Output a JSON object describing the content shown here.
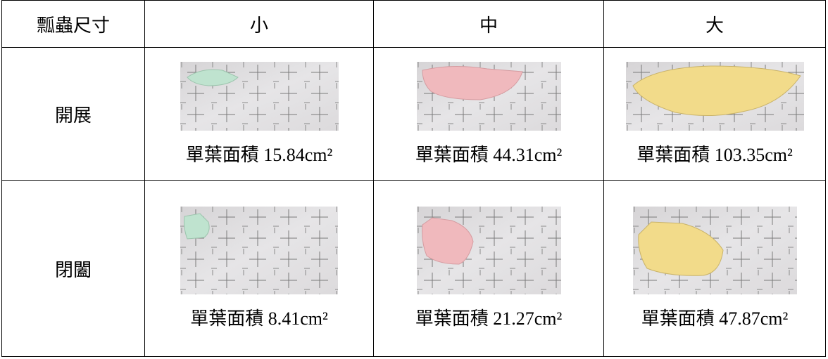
{
  "table": {
    "header": [
      "瓢蟲尺寸",
      "小",
      "中",
      "大"
    ],
    "rows": [
      {
        "label": "開展",
        "cells": [
          "單葉面積 15.84cm²",
          "單葉面積 44.31cm²",
          "單葉面積 103.35cm²"
        ]
      },
      {
        "label": "閉闔",
        "cells": [
          "單葉面積 8.41cm²",
          "單葉面積 21.27cm²",
          "單葉面積 47.87cm²"
        ]
      }
    ]
  }
}
